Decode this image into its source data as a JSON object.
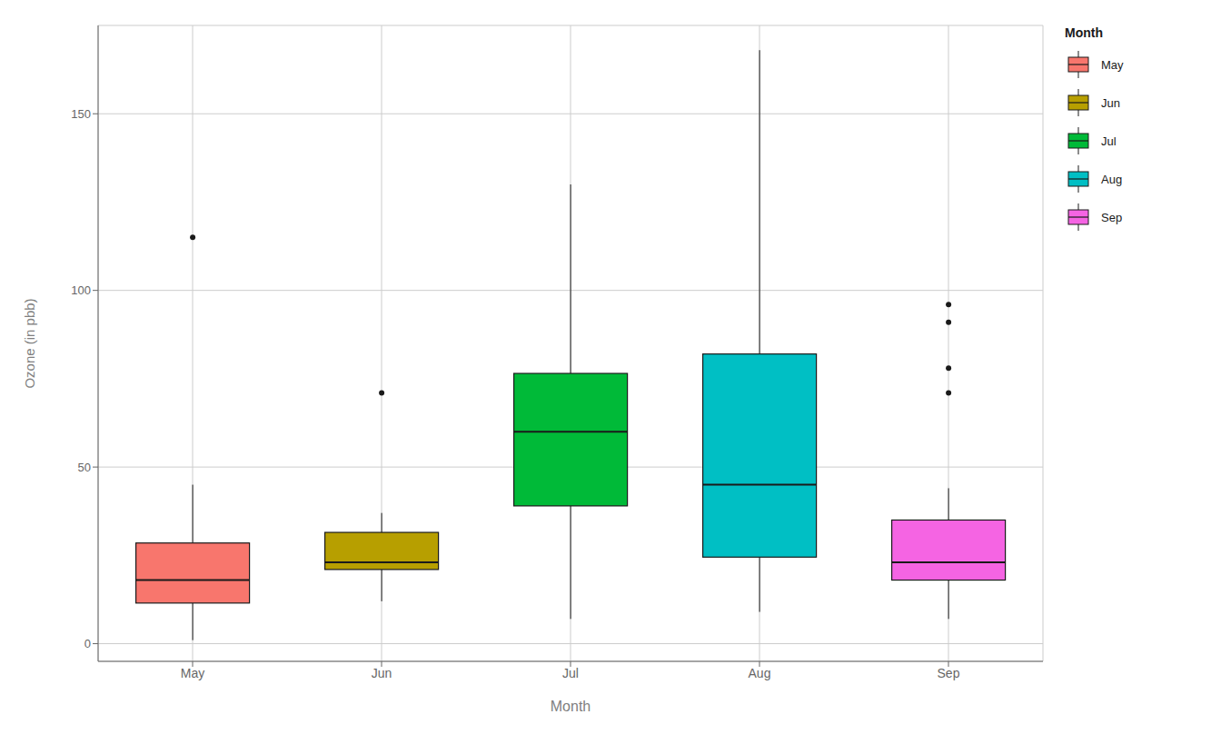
{
  "chart_data": {
    "type": "box",
    "xlabel": "Month",
    "ylabel": "Ozone (in pbb)",
    "categories": [
      "May",
      "Jun",
      "Jul",
      "Aug",
      "Sep"
    ],
    "colors": [
      "#F8766D",
      "#B79F00",
      "#00BA38",
      "#00BFC4",
      "#F564E3"
    ],
    "boxes": [
      {
        "whislo": 1,
        "q1": 11.5,
        "med": 18.0,
        "q3": 28.5,
        "whishi": 45,
        "fliers": [
          115
        ]
      },
      {
        "whislo": 12,
        "q1": 21.0,
        "med": 23.0,
        "q3": 31.5,
        "whishi": 37,
        "fliers": [
          71
        ]
      },
      {
        "whislo": 7,
        "q1": 39.0,
        "med": 60.0,
        "q3": 76.5,
        "whishi": 130,
        "fliers": []
      },
      {
        "whislo": 9,
        "q1": 24.5,
        "med": 45.0,
        "q3": 82.0,
        "whishi": 168,
        "fliers": []
      },
      {
        "whislo": 7,
        "q1": 18.0,
        "med": 23.0,
        "q3": 35.0,
        "whishi": 44,
        "fliers": [
          71,
          78,
          91,
          96
        ]
      }
    ],
    "ylim": [
      -5,
      175
    ],
    "yticks": [
      0,
      50,
      100,
      150
    ],
    "grid": true,
    "legend": "right",
    "legend_title": "Month"
  }
}
